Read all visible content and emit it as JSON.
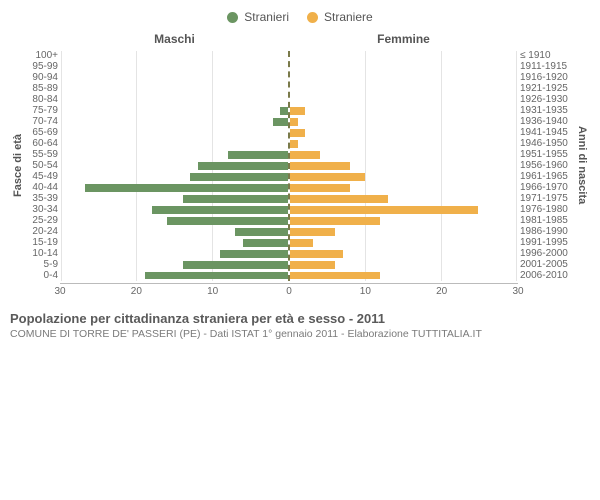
{
  "legend": {
    "male": {
      "label": "Stranieri",
      "color": "#6b9562"
    },
    "female": {
      "label": "Straniere",
      "color": "#f0b04a"
    }
  },
  "headers": {
    "male": "Maschi",
    "female": "Femmine",
    "left_axis_title": "Fasce di età",
    "right_axis_title": "Anni di nascita"
  },
  "chart": {
    "type": "population-pyramid",
    "xmax": 30,
    "xticks": [
      30,
      20,
      10,
      0,
      10,
      20,
      30
    ],
    "grid_color": "#e4e4e4",
    "background_color": "#ffffff",
    "center_line_color": "#7a7a4a",
    "bar_height_pct": 72,
    "categories": [
      {
        "age": "100+",
        "birth": "≤ 1910",
        "m": 0,
        "f": 0
      },
      {
        "age": "95-99",
        "birth": "1911-1915",
        "m": 0,
        "f": 0
      },
      {
        "age": "90-94",
        "birth": "1916-1920",
        "m": 0,
        "f": 0
      },
      {
        "age": "85-89",
        "birth": "1921-1925",
        "m": 0,
        "f": 0
      },
      {
        "age": "80-84",
        "birth": "1926-1930",
        "m": 0,
        "f": 0
      },
      {
        "age": "75-79",
        "birth": "1931-1935",
        "m": 1,
        "f": 2
      },
      {
        "age": "70-74",
        "birth": "1936-1940",
        "m": 2,
        "f": 1
      },
      {
        "age": "65-69",
        "birth": "1941-1945",
        "m": 0,
        "f": 2
      },
      {
        "age": "60-64",
        "birth": "1946-1950",
        "m": 0,
        "f": 1
      },
      {
        "age": "55-59",
        "birth": "1951-1955",
        "m": 8,
        "f": 4
      },
      {
        "age": "50-54",
        "birth": "1956-1960",
        "m": 12,
        "f": 8
      },
      {
        "age": "45-49",
        "birth": "1961-1965",
        "m": 13,
        "f": 10
      },
      {
        "age": "40-44",
        "birth": "1966-1970",
        "m": 27,
        "f": 8
      },
      {
        "age": "35-39",
        "birth": "1971-1975",
        "m": 14,
        "f": 13
      },
      {
        "age": "30-34",
        "birth": "1976-1980",
        "m": 18,
        "f": 25
      },
      {
        "age": "25-29",
        "birth": "1981-1985",
        "m": 16,
        "f": 12
      },
      {
        "age": "20-24",
        "birth": "1986-1990",
        "m": 7,
        "f": 6
      },
      {
        "age": "15-19",
        "birth": "1991-1995",
        "m": 6,
        "f": 3
      },
      {
        "age": "10-14",
        "birth": "1996-2000",
        "m": 9,
        "f": 7
      },
      {
        "age": "5-9",
        "birth": "2001-2005",
        "m": 14,
        "f": 6
      },
      {
        "age": "0-4",
        "birth": "2006-2010",
        "m": 19,
        "f": 12
      }
    ]
  },
  "caption": "Popolazione per cittadinanza straniera per età e sesso - 2011",
  "subcaption": "COMUNE DI TORRE DE' PASSERI (PE) - Dati ISTAT 1° gennaio 2011 - Elaborazione TUTTITALIA.IT"
}
